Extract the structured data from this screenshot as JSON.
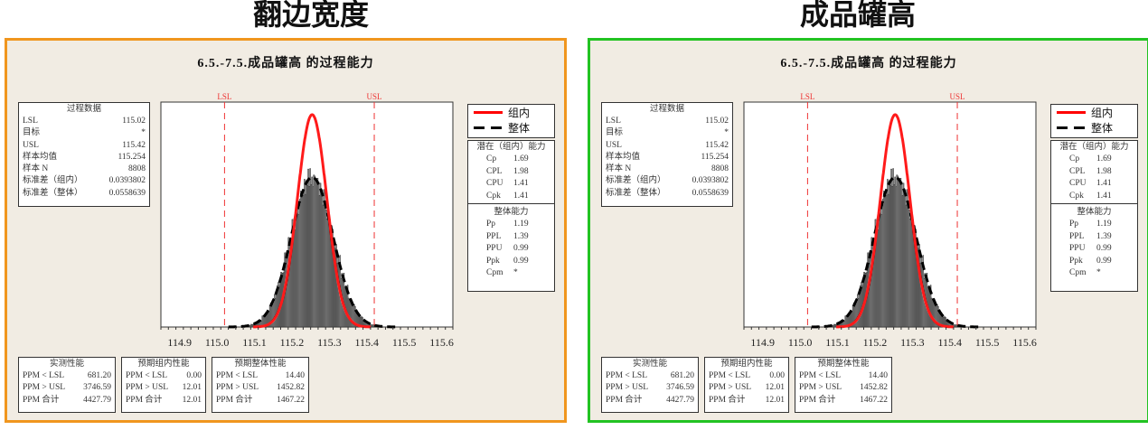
{
  "panels": [
    {
      "heading": "翻边宽度",
      "border_color": "#f0961e"
    },
    {
      "heading": "成品罐高",
      "border_color": "#22c322"
    }
  ],
  "chart_title": "6.5.-7.5.成品罐高 的过程能力",
  "process_data": {
    "title": "过程数据",
    "rows": [
      [
        "LSL",
        "115.02"
      ],
      [
        "目标",
        "*"
      ],
      [
        "USL",
        "115.42"
      ],
      [
        "样本均值",
        "115.254"
      ],
      [
        "样本 N",
        "8808"
      ],
      [
        "标准差（组内）",
        "0.0393802"
      ],
      [
        "标准差（整体）",
        "0.0558639"
      ]
    ]
  },
  "legend": {
    "within": "组内",
    "overall": "整体"
  },
  "potential": {
    "title": "潜在（组内）能力",
    "rows": [
      [
        "Cp",
        "1.69"
      ],
      [
        "CPL",
        "1.98"
      ],
      [
        "CPU",
        "1.41"
      ],
      [
        "Cpk",
        "1.41"
      ]
    ]
  },
  "overall_cap": {
    "title": "整体能力",
    "rows": [
      [
        "Pp",
        "1.19"
      ],
      [
        "PPL",
        "1.39"
      ],
      [
        "PPU",
        "0.99"
      ],
      [
        "Ppk",
        "0.99"
      ],
      [
        "Cpm",
        "*"
      ]
    ]
  },
  "observed": {
    "title": "实测性能",
    "rows": [
      [
        "PPM < LSL",
        "681.20"
      ],
      [
        "PPM > USL",
        "3746.59"
      ],
      [
        "PPM 合计",
        "4427.79"
      ]
    ]
  },
  "exp_within": {
    "title": "预期组内性能",
    "rows": [
      [
        "PPM < LSL",
        "0.00"
      ],
      [
        "PPM > USL",
        "12.01"
      ],
      [
        "PPM 合计",
        "12.01"
      ]
    ]
  },
  "exp_overall": {
    "title": "预期整体性能",
    "rows": [
      [
        "PPM < LSL",
        "14.40"
      ],
      [
        "PPM > USL",
        "1452.82"
      ],
      [
        "PPM 合计",
        "1467.22"
      ]
    ]
  },
  "chart_data": {
    "type": "bar",
    "title": "6.5.-7.5.成品罐高 的过程能力",
    "xlim": [
      114.85,
      115.63
    ],
    "ylim": [
      0,
      945
    ],
    "xticks": [
      "114.9",
      "115.0",
      "115.1",
      "115.2",
      "115.3",
      "115.4",
      "115.5",
      "115.6"
    ],
    "spec_lines": {
      "LSL": 115.02,
      "USL": 115.42
    },
    "bin_width": 0.01,
    "bin_starts": [
      115.08,
      115.09,
      115.1,
      115.11,
      115.12,
      115.13,
      115.14,
      115.15,
      115.16,
      115.17,
      115.18,
      115.19,
      115.2,
      115.21,
      115.22,
      115.23,
      115.24,
      115.25,
      115.26,
      115.27,
      115.28,
      115.29,
      115.3,
      115.31,
      115.32,
      115.33,
      115.34,
      115.35,
      115.36,
      115.37,
      115.38,
      115.39,
      115.4,
      115.41,
      115.42,
      115.43
    ],
    "counts": [
      7,
      11,
      19,
      28,
      46,
      63,
      97,
      128,
      180,
      228,
      298,
      355,
      433,
      487,
      556,
      588,
      628,
      612,
      622,
      580,
      545,
      474,
      420,
      340,
      286,
      214,
      170,
      118,
      90,
      58,
      42,
      25,
      17,
      9,
      6,
      3
    ],
    "mean": 115.254,
    "stdev_within": 0.0393802,
    "stdev_overall": 0.0558639,
    "n": 8808,
    "series": [
      {
        "name": "组内",
        "color": "#ff0000"
      },
      {
        "name": "整体",
        "color": "#000000"
      }
    ]
  }
}
